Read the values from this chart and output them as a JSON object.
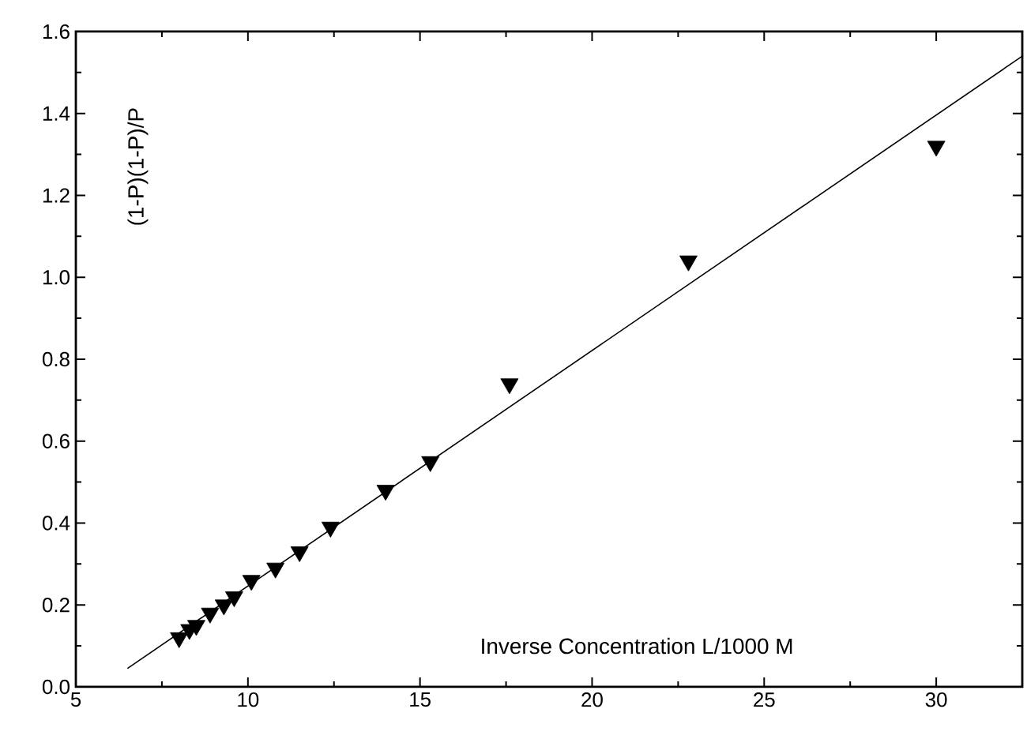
{
  "chart_data": {
    "type": "scatter",
    "xlabel": "Inverse Concentration L/1000 M",
    "ylabel": "(1-P)(1-P)/P",
    "xlim": [
      5,
      32.5
    ],
    "ylim": [
      0,
      1.6
    ],
    "xticks": [
      5,
      10,
      15,
      20,
      25,
      30
    ],
    "yticks": [
      {
        "value": 0,
        "label": "0.0"
      },
      0.2,
      0.4,
      0.6,
      0.8,
      {
        "value": 1,
        "label": "1.0"
      },
      1.2,
      1.4,
      1.6
    ],
    "grid": false,
    "legend": false,
    "marker": "triangle",
    "series": [
      {
        "color": "#000000",
        "x": [
          8.0,
          8.3,
          8.5,
          8.9,
          9.3,
          9.6,
          10.1,
          10.8,
          11.5,
          12.4,
          14.0,
          15.3,
          17.6,
          22.8,
          30.0
        ],
        "values": [
          0.12,
          0.14,
          0.15,
          0.18,
          0.2,
          0.22,
          0.26,
          0.29,
          0.33,
          0.39,
          0.48,
          0.55,
          0.74,
          1.04,
          1.32
        ]
      },
      {
        "type": "line",
        "color": "#000000",
        "marker": "none",
        "line_style": "solid",
        "x": [
          6.5,
          32.5
        ],
        "values": [
          0.045,
          1.54
        ]
      }
    ]
  }
}
